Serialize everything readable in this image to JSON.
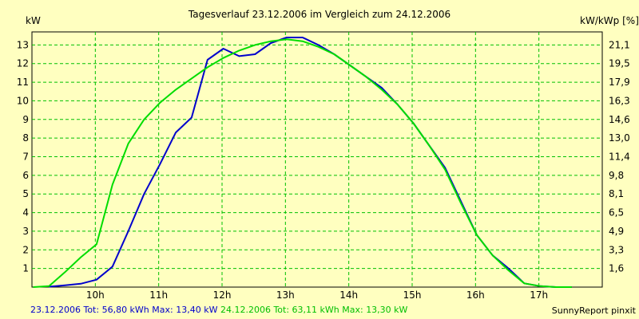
{
  "chart_data": {
    "type": "line",
    "title": "Tagesverlauf 23.12.2006 im Vergleich zum 24.12.2006",
    "ylabel_left": "kW",
    "ylabel_right": "kW/kWp [%]",
    "ylim": [
      0,
      13.7
    ],
    "xlim": [
      9.0,
      18.0
    ],
    "grid": true,
    "x_ticks": [
      {
        "x": 10,
        "label": "10h"
      },
      {
        "x": 11,
        "label": "11h"
      },
      {
        "x": 12,
        "label": "12h"
      },
      {
        "x": 13,
        "label": "13h"
      },
      {
        "x": 14,
        "label": "14h"
      },
      {
        "x": 15,
        "label": "15h"
      },
      {
        "x": 16,
        "label": "16h"
      },
      {
        "x": 17,
        "label": "17h"
      }
    ],
    "left_ticks": [
      {
        "y": 1,
        "label": "1"
      },
      {
        "y": 2,
        "label": "2"
      },
      {
        "y": 3,
        "label": "3"
      },
      {
        "y": 4,
        "label": "4"
      },
      {
        "y": 5,
        "label": "5"
      },
      {
        "y": 6,
        "label": "6"
      },
      {
        "y": 7,
        "label": "7"
      },
      {
        "y": 8,
        "label": "8"
      },
      {
        "y": 9,
        "label": "9"
      },
      {
        "y": 10,
        "label": "10"
      },
      {
        "y": 11,
        "label": "11"
      },
      {
        "y": 12,
        "label": "12"
      },
      {
        "y": 13,
        "label": "13"
      }
    ],
    "right_ticks": [
      {
        "y": 1,
        "label": "1,6"
      },
      {
        "y": 2,
        "label": "3,3"
      },
      {
        "y": 3,
        "label": "4,9"
      },
      {
        "y": 4,
        "label": "6,5"
      },
      {
        "y": 5,
        "label": "8,1"
      },
      {
        "y": 6,
        "label": "9,8"
      },
      {
        "y": 7,
        "label": "11,4"
      },
      {
        "y": 8,
        "label": "13,0"
      },
      {
        "y": 9,
        "label": "14,6"
      },
      {
        "y": 10,
        "label": "16,3"
      },
      {
        "y": 11,
        "label": "17,9"
      },
      {
        "y": 12,
        "label": "19,5"
      },
      {
        "y": 13,
        "label": "21,1"
      }
    ],
    "series": [
      {
        "name": "23.12.2006",
        "color": "#0000cc",
        "x": [
          9.27,
          9.52,
          9.77,
          10.02,
          10.27,
          10.52,
          10.77,
          11.02,
          11.27,
          11.52,
          11.77,
          12.02,
          12.27,
          12.52,
          12.77,
          13.02,
          13.27,
          13.52,
          13.77,
          14.02,
          14.27,
          14.52,
          14.77,
          15.02,
          15.27,
          15.52,
          15.77,
          16.02,
          16.27,
          16.52,
          16.77,
          17.02,
          17.27,
          17.52
        ],
        "y": [
          0.02,
          0.1,
          0.18,
          0.4,
          1.1,
          3.0,
          5.0,
          6.6,
          8.3,
          9.1,
          12.2,
          12.8,
          12.4,
          12.5,
          13.1,
          13.4,
          13.4,
          13.0,
          12.5,
          11.9,
          11.3,
          10.7,
          9.8,
          8.8,
          7.6,
          6.4,
          4.6,
          2.8,
          1.7,
          1.0,
          0.2,
          0.05,
          0.0,
          0.0
        ]
      },
      {
        "name": "24.12.2006",
        "color": "#00dd00",
        "x": [
          9.02,
          9.27,
          9.52,
          9.77,
          10.02,
          10.27,
          10.52,
          10.77,
          11.02,
          11.27,
          11.52,
          11.77,
          12.02,
          12.27,
          12.52,
          12.77,
          13.02,
          13.27,
          13.52,
          13.77,
          14.02,
          14.27,
          14.52,
          14.77,
          15.02,
          15.27,
          15.52,
          15.77,
          16.02,
          16.27,
          16.52,
          16.77,
          17.02,
          17.27,
          17.52
        ],
        "y": [
          0.0,
          0.05,
          0.8,
          1.6,
          2.3,
          5.5,
          7.7,
          9.0,
          9.9,
          10.6,
          11.2,
          11.8,
          12.3,
          12.7,
          13.0,
          13.2,
          13.3,
          13.2,
          12.9,
          12.5,
          11.9,
          11.3,
          10.6,
          9.8,
          8.8,
          7.6,
          6.3,
          4.5,
          2.8,
          1.7,
          0.9,
          0.2,
          0.05,
          0.0,
          0.0
        ]
      }
    ]
  },
  "footer": {
    "s1_text": "23.12.2006 Tot: 56,80 kWh Max: 13,40 kW",
    "s2_text": "24.12.2006 Tot: 63,11 kWh Max: 13,30 kW",
    "credit": "SunnyReport pinxit"
  }
}
